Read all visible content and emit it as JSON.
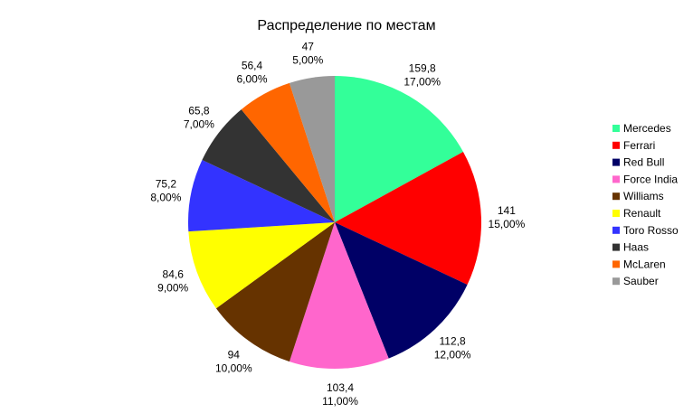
{
  "chart_data": {
    "type": "pie",
    "title": "Распределение по местам",
    "categories": [
      "Mercedes",
      "Ferrari",
      "Red Bull",
      "Force India",
      "Williams",
      "Renault",
      "Toro Rosso",
      "Haas",
      "McLaren",
      "Sauber"
    ],
    "values": [
      159.8,
      141,
      112.8,
      103.4,
      94,
      84.6,
      75.2,
      65.8,
      56.4,
      47
    ],
    "value_labels": [
      "159,8",
      "141",
      "112,8",
      "103,4",
      "94",
      "84,6",
      "75,2",
      "65,8",
      "56,4",
      "47"
    ],
    "percent_labels": [
      "17,00%",
      "15,00%",
      "12,00%",
      "11,00%",
      "10,00%",
      "9,00%",
      "8,00%",
      "7,00%",
      "6,00%",
      "5,00%"
    ],
    "colors": [
      "#33ff99",
      "#ff0000",
      "#000066",
      "#ff66cc",
      "#663300",
      "#ffff00",
      "#3333ff",
      "#333333",
      "#ff6600",
      "#999999"
    ],
    "legend_position": "right",
    "start_angle_deg": 0,
    "direction": "clockwise"
  }
}
